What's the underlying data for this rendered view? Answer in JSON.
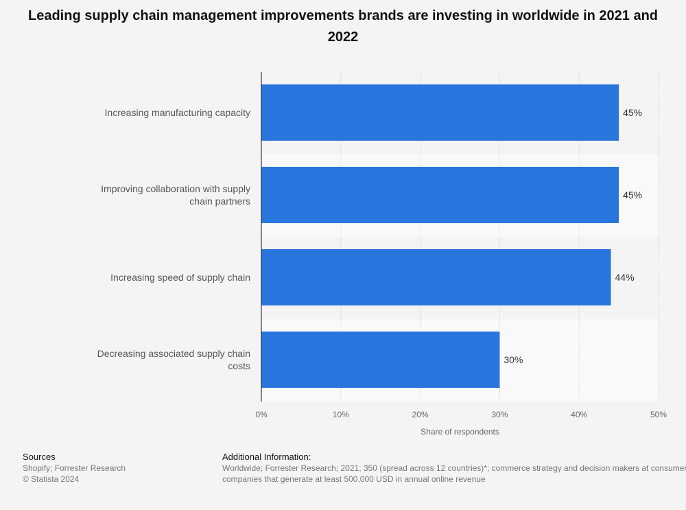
{
  "title": "Leading supply chain management improvements brands are investing in worldwide in 2021 and 2022",
  "chart_data": {
    "type": "bar",
    "orientation": "horizontal",
    "categories": [
      "Increasing manufacturing capacity",
      "Improving collaboration with supply chain partners",
      "Increasing speed of supply chain",
      "Decreasing associated supply chain costs"
    ],
    "values": [
      45,
      45,
      44,
      30
    ],
    "value_labels": [
      "45%",
      "45%",
      "44%",
      "30%"
    ],
    "xlabel": "Share of respondents",
    "xlim": [
      0,
      50
    ],
    "ticks": [
      0,
      10,
      20,
      30,
      40,
      50
    ],
    "tick_labels": [
      "0%",
      "10%",
      "20%",
      "30%",
      "40%",
      "50%"
    ],
    "grid": true,
    "bar_color": "#2876dd"
  },
  "footer": {
    "sources_heading": "Sources",
    "sources_line1": "Shopify; Forrester Research",
    "sources_line2": "© Statista 2024",
    "additional_heading": "Additional Information:",
    "additional_line1": "Worldwide; Forrester Research; 2021; 350 (spread across 12 countries)*; commerce strategy and decision makers at consumer",
    "additional_line2": "companies that generate at least 500,000 USD in annual online revenue"
  }
}
